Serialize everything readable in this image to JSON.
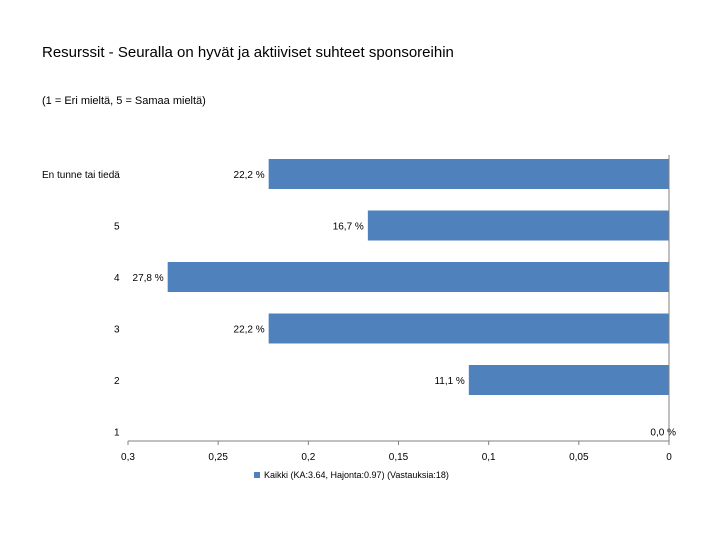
{
  "chart_data": {
    "type": "bar",
    "orientation": "horizontal",
    "title": "Resurssit - Seuralla on hyvät ja aktiiviset suhteet sponsoreihin",
    "subtitle": "(1 = Eri mieltä, 5 = Samaa mieltä)",
    "categories": [
      "En tunne tai tiedä",
      "5",
      "4",
      "3",
      "2",
      "1"
    ],
    "series": [
      {
        "name": "Kaikki (KA:3.64, Hajonta:0.97) (Vastauksia:18)",
        "values": [
          0.222,
          0.167,
          0.278,
          0.222,
          0.111,
          0.0
        ],
        "labels": [
          "22,2 %",
          "16,7 %",
          "27,8 %",
          "22,2 %",
          "11,1 %",
          "0,0 %"
        ]
      }
    ],
    "xlim": [
      0.3,
      0
    ],
    "x_reversed": true,
    "ticks": [
      0.3,
      0.25,
      0.2,
      0.15,
      0.1,
      0.05,
      0
    ],
    "tick_labels": [
      "0,3",
      "0,25",
      "0,2",
      "0,15",
      "0,1",
      "0,05",
      "0"
    ],
    "legend_position": "bottom",
    "grid": false,
    "colors": {
      "bar": "#4F81BD",
      "axis": "#808080"
    }
  }
}
